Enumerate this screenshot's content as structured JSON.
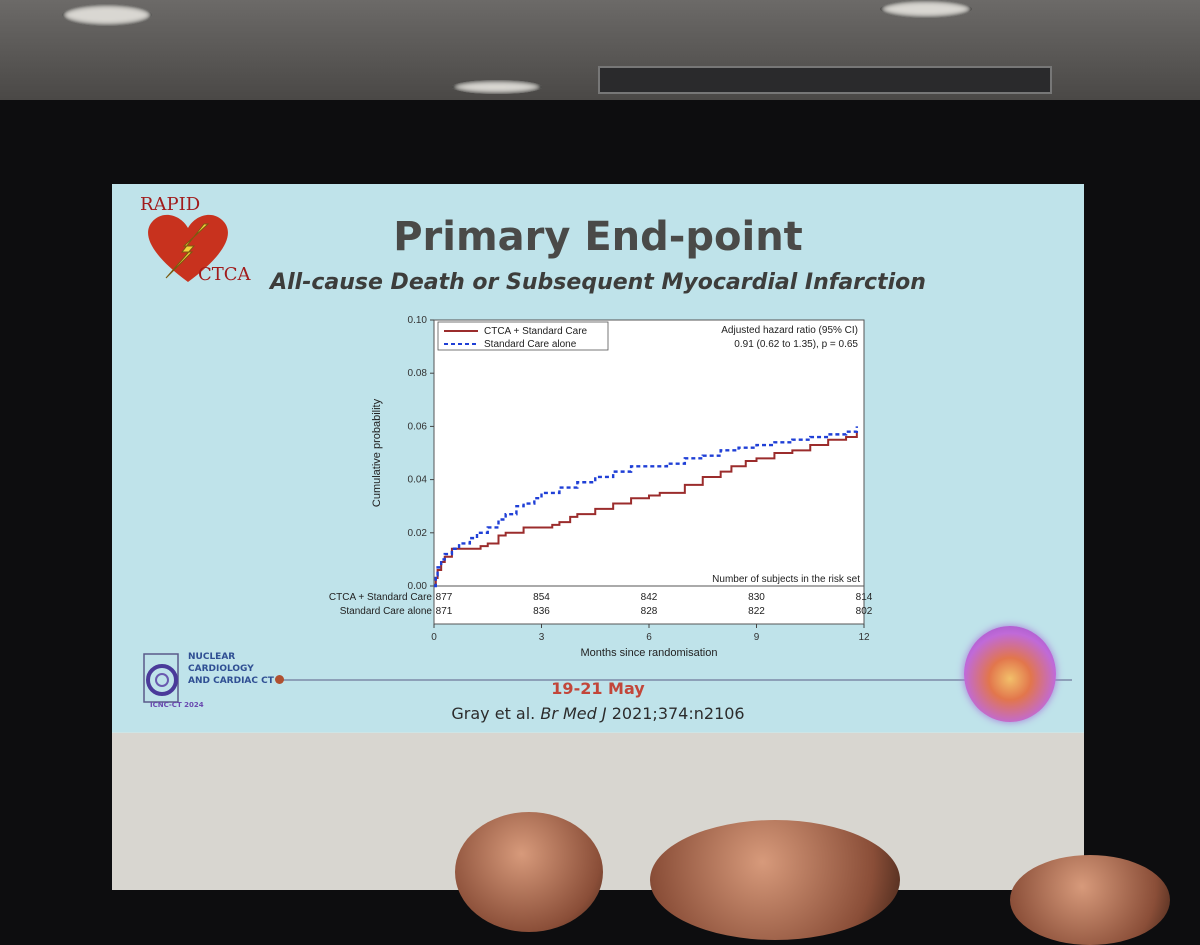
{
  "slide": {
    "title": "Primary End-point",
    "subtitle": "All-cause Death or Subsequent Myocardial Infarction",
    "logo_top": "RAPID",
    "logo_bottom": "CTCA",
    "conference": [
      "NUCLEAR",
      "CARDIOLOGY",
      "AND CARDIAC CT"
    ],
    "conference_tag": "ICNC-CT 2024",
    "dates": "19-21 May",
    "citation_author": "Gray et al.",
    "citation_journal": "Br Med J",
    "citation_ref": "2021;374:n2106"
  },
  "colors": {
    "ctca": "#9b2c2c",
    "standard": "#1f3fd6",
    "accent": "#c2463a"
  },
  "chart_data": {
    "type": "line",
    "title": "",
    "xlabel": "Months since randomisation",
    "ylabel": "Cumulative probability",
    "xlim": [
      0,
      12
    ],
    "ylim": [
      0,
      0.1
    ],
    "xticks": [
      0,
      3,
      6,
      9,
      12
    ],
    "yticks": [
      "0.00",
      "0.02",
      "0.04",
      "0.06",
      "0.08",
      "0.10"
    ],
    "legend_position": "top-left",
    "annotation": [
      "Adjusted hazard ratio (95% CI)",
      "0.91 (0.62 to 1.35),  p = 0.65"
    ],
    "series": [
      {
        "name": "CTCA + Standard Care",
        "style": "solid",
        "x": [
          0,
          0.05,
          0.1,
          0.2,
          0.3,
          0.5,
          1.0,
          1.3,
          1.5,
          1.8,
          2.0,
          2.5,
          2.8,
          3.3,
          3.5,
          3.8,
          4.0,
          4.5,
          5.0,
          5.5,
          6.0,
          6.3,
          7.0,
          7.5,
          8.0,
          8.3,
          8.7,
          9.0,
          9.5,
          10.0,
          10.5,
          11.0,
          11.5,
          11.8
        ],
        "y": [
          0,
          0.003,
          0.006,
          0.009,
          0.011,
          0.014,
          0.014,
          0.015,
          0.016,
          0.019,
          0.02,
          0.022,
          0.022,
          0.023,
          0.024,
          0.026,
          0.027,
          0.029,
          0.031,
          0.033,
          0.034,
          0.035,
          0.038,
          0.041,
          0.043,
          0.045,
          0.047,
          0.048,
          0.05,
          0.051,
          0.053,
          0.055,
          0.056,
          0.058
        ]
      },
      {
        "name": "Standard Care alone",
        "style": "dashed",
        "x": [
          0,
          0.05,
          0.1,
          0.2,
          0.3,
          0.5,
          0.7,
          1.0,
          1.2,
          1.5,
          1.8,
          2.0,
          2.3,
          2.5,
          2.8,
          3.0,
          3.5,
          4.0,
          4.5,
          5.0,
          5.5,
          6.0,
          6.5,
          7.0,
          7.5,
          8.0,
          8.5,
          9.0,
          9.5,
          10.0,
          10.5,
          11.0,
          11.5,
          11.8
        ],
        "y": [
          0,
          0.004,
          0.007,
          0.01,
          0.012,
          0.014,
          0.016,
          0.018,
          0.02,
          0.022,
          0.025,
          0.027,
          0.03,
          0.031,
          0.033,
          0.035,
          0.037,
          0.039,
          0.041,
          0.043,
          0.045,
          0.045,
          0.046,
          0.048,
          0.049,
          0.051,
          0.052,
          0.053,
          0.054,
          0.055,
          0.056,
          0.057,
          0.058,
          0.06
        ]
      }
    ],
    "risk_table": {
      "title": "Number of subjects in the risk set",
      "x": [
        0,
        3,
        6,
        9,
        12
      ],
      "rows": [
        {
          "label": "CTCA + Standard Care",
          "values": [
            877,
            854,
            842,
            830,
            814
          ]
        },
        {
          "label": "Standard Care alone",
          "values": [
            871,
            836,
            828,
            822,
            802
          ]
        }
      ]
    }
  }
}
